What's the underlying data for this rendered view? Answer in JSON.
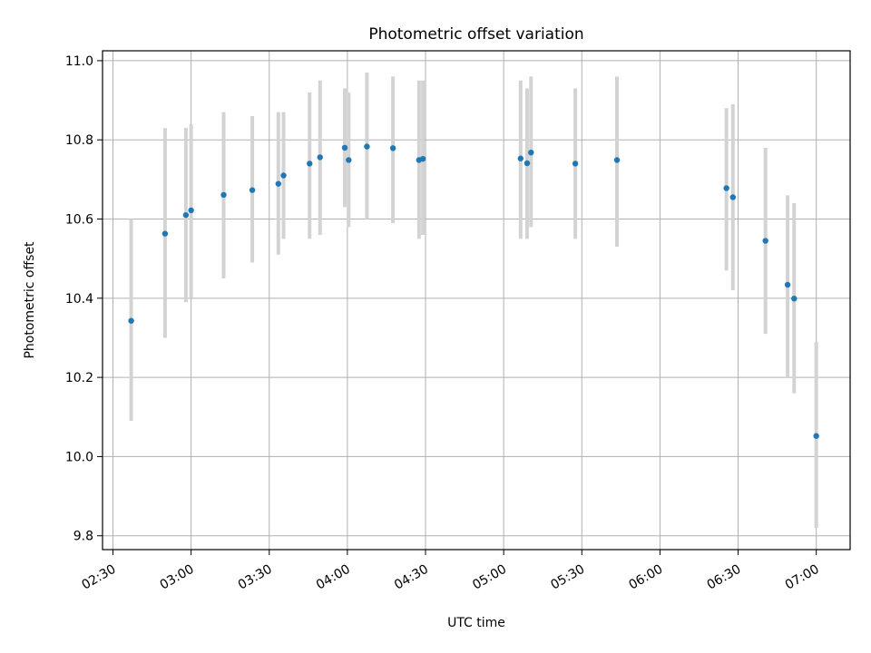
{
  "chart_data": {
    "type": "scatter",
    "title": "Photometric offset variation",
    "xlabel": "UTC time",
    "ylabel": "Photometric offset",
    "x_unit": "UTC time (HH:MM)",
    "xlim": [
      "02:26",
      "07:13"
    ],
    "ylim": [
      9.765,
      11.025
    ],
    "x_ticks": [
      "02:30",
      "03:00",
      "03:30",
      "04:00",
      "04:30",
      "05:00",
      "05:30",
      "06:00",
      "06:30",
      "07:00"
    ],
    "y_ticks": [
      "9.8",
      "10.0",
      "10.2",
      "10.4",
      "10.6",
      "10.8",
      "11.0"
    ],
    "grid": true,
    "colors": {
      "point": "#1f77b4",
      "errorbar": "#d3d3d3",
      "grid": "#b0b0b0"
    },
    "series": [
      {
        "points": [
          {
            "x": "02:37:00",
            "y": 10.343,
            "ylow": 10.09,
            "yhigh": 10.6
          },
          {
            "x": "02:50:00",
            "y": 10.563,
            "ylow": 10.3,
            "yhigh": 10.83
          },
          {
            "x": "02:58:00",
            "y": 10.61,
            "ylow": 10.39,
            "yhigh": 10.83
          },
          {
            "x": "03:00:00",
            "y": 10.622,
            "ylow": 10.4,
            "yhigh": 10.84
          },
          {
            "x": "03:12:30",
            "y": 10.661,
            "ylow": 10.45,
            "yhigh": 10.87
          },
          {
            "x": "03:23:30",
            "y": 10.673,
            "ylow": 10.49,
            "yhigh": 10.86
          },
          {
            "x": "03:33:30",
            "y": 10.689,
            "ylow": 10.51,
            "yhigh": 10.87
          },
          {
            "x": "03:35:30",
            "y": 10.71,
            "ylow": 10.55,
            "yhigh": 10.87
          },
          {
            "x": "03:45:30",
            "y": 10.74,
            "ylow": 10.55,
            "yhigh": 10.92
          },
          {
            "x": "03:49:30",
            "y": 10.756,
            "ylow": 10.56,
            "yhigh": 10.95
          },
          {
            "x": "03:59:00",
            "y": 10.78,
            "ylow": 10.63,
            "yhigh": 10.93
          },
          {
            "x": "04:00:30",
            "y": 10.749,
            "ylow": 10.58,
            "yhigh": 10.92
          },
          {
            "x": "04:07:30",
            "y": 10.783,
            "ylow": 10.6,
            "yhigh": 10.97
          },
          {
            "x": "04:17:30",
            "y": 10.779,
            "ylow": 10.59,
            "yhigh": 10.96
          },
          {
            "x": "04:27:30",
            "y": 10.749,
            "ylow": 10.55,
            "yhigh": 10.95
          },
          {
            "x": "04:29:00",
            "y": 10.752,
            "ylow": 10.56,
            "yhigh": 10.95
          },
          {
            "x": "05:06:30",
            "y": 10.753,
            "ylow": 10.55,
            "yhigh": 10.95
          },
          {
            "x": "05:09:00",
            "y": 10.741,
            "ylow": 10.55,
            "yhigh": 10.93
          },
          {
            "x": "05:10:30",
            "y": 10.768,
            "ylow": 10.58,
            "yhigh": 10.96
          },
          {
            "x": "05:27:30",
            "y": 10.74,
            "ylow": 10.55,
            "yhigh": 10.93
          },
          {
            "x": "05:43:30",
            "y": 10.749,
            "ylow": 10.53,
            "yhigh": 10.96
          },
          {
            "x": "06:25:30",
            "y": 10.678,
            "ylow": 10.47,
            "yhigh": 10.88
          },
          {
            "x": "06:28:00",
            "y": 10.655,
            "ylow": 10.42,
            "yhigh": 10.89
          },
          {
            "x": "06:40:30",
            "y": 10.545,
            "ylow": 10.31,
            "yhigh": 10.78
          },
          {
            "x": "06:49:00",
            "y": 10.434,
            "ylow": 10.2,
            "yhigh": 10.66
          },
          {
            "x": "06:51:30",
            "y": 10.399,
            "ylow": 10.16,
            "yhigh": 10.64
          },
          {
            "x": "07:00:00",
            "y": 10.052,
            "ylow": 9.82,
            "yhigh": 10.29
          }
        ]
      }
    ]
  }
}
